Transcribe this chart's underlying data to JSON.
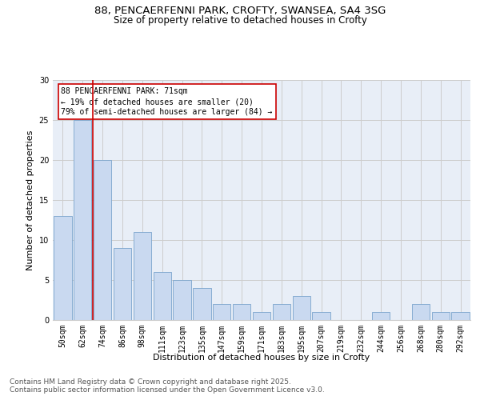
{
  "title_line1": "88, PENCAERFENNI PARK, CROFTY, SWANSEA, SA4 3SG",
  "title_line2": "Size of property relative to detached houses in Crofty",
  "xlabel": "Distribution of detached houses by size in Crofty",
  "ylabel": "Number of detached properties",
  "categories": [
    "50sqm",
    "62sqm",
    "74sqm",
    "86sqm",
    "98sqm",
    "111sqm",
    "123sqm",
    "135sqm",
    "147sqm",
    "159sqm",
    "171sqm",
    "183sqm",
    "195sqm",
    "207sqm",
    "219sqm",
    "232sqm",
    "244sqm",
    "256sqm",
    "268sqm",
    "280sqm",
    "292sqm"
  ],
  "values": [
    13,
    25,
    20,
    9,
    11,
    6,
    5,
    4,
    2,
    2,
    1,
    2,
    3,
    1,
    0,
    0,
    1,
    0,
    2,
    1,
    1
  ],
  "bar_color": "#c9d9f0",
  "bar_edge_color": "#7aa4cc",
  "vline_x": 1.5,
  "vline_color": "#cc0000",
  "annotation_text": "88 PENCAERFENNI PARK: 71sqm\n← 19% of detached houses are smaller (20)\n79% of semi-detached houses are larger (84) →",
  "annotation_box_color": "#ffffff",
  "annotation_box_edge": "#cc0000",
  "ylim": [
    0,
    30
  ],
  "yticks": [
    0,
    5,
    10,
    15,
    20,
    25,
    30
  ],
  "grid_color": "#cccccc",
  "bg_color": "#e8eef7",
  "footer": "Contains HM Land Registry data © Crown copyright and database right 2025.\nContains public sector information licensed under the Open Government Licence v3.0.",
  "title_fontsize": 9.5,
  "subtitle_fontsize": 8.5,
  "axis_label_fontsize": 8,
  "tick_fontsize": 7,
  "annotation_fontsize": 7,
  "footer_fontsize": 6.5
}
